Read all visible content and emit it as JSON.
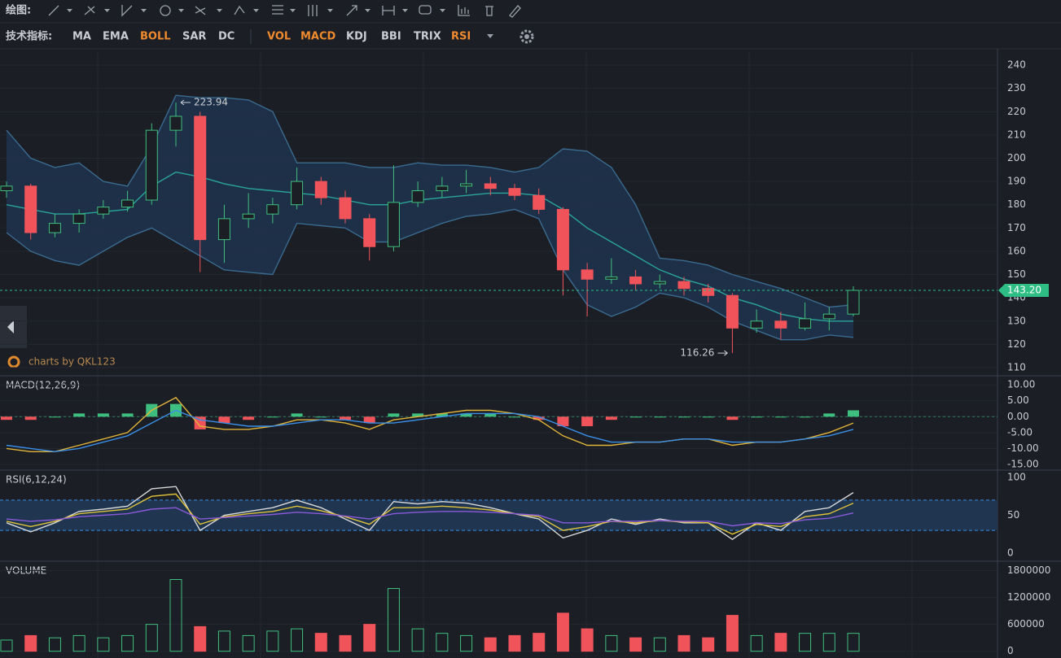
{
  "toolbar": {
    "draw_label": "绘图:",
    "indicator_label": "技术指标:",
    "indicators": [
      {
        "name": "MA",
        "active": false
      },
      {
        "name": "EMA",
        "active": false
      },
      {
        "name": "BOLL",
        "active": true
      },
      {
        "name": "SAR",
        "active": false
      },
      {
        "name": "DC",
        "active": false
      },
      {
        "name": "VOL",
        "active": true
      },
      {
        "name": "MACD",
        "active": true
      },
      {
        "name": "KDJ",
        "active": false
      },
      {
        "name": "BBI",
        "active": false
      },
      {
        "name": "TRIX",
        "active": false
      },
      {
        "name": "RSI",
        "active": true
      }
    ]
  },
  "watermark": "charts by QKL123",
  "chart_data": [
    {
      "type": "candlestick",
      "up_color": "#3fbf7f",
      "down_color": "#f0545a",
      "grid": true,
      "open": [
        186,
        188,
        168,
        172,
        176,
        179,
        182,
        212,
        218,
        165,
        174,
        176,
        180,
        190,
        183,
        174,
        162,
        181,
        186,
        188,
        189,
        187,
        184,
        178,
        152,
        148,
        149,
        146,
        147,
        144,
        141,
        127,
        130,
        127,
        131,
        133
      ],
      "high": [
        190,
        189,
        176,
        178,
        182,
        186,
        215,
        223.94,
        220,
        180,
        185,
        183,
        196,
        192,
        186,
        176,
        197,
        190,
        192,
        195,
        192,
        189,
        187,
        179,
        155,
        157,
        152,
        150,
        149,
        146,
        142,
        135,
        134,
        138,
        136,
        145
      ],
      "low": [
        183,
        165,
        166,
        168,
        174,
        177,
        180,
        205,
        151,
        155,
        170,
        172,
        178,
        180,
        172,
        156,
        160,
        179,
        183,
        185,
        184,
        182,
        176,
        141,
        132,
        146,
        143,
        144,
        141,
        138,
        116.26,
        125,
        122,
        126,
        126,
        132
      ],
      "close": [
        188,
        168,
        172,
        176,
        179,
        182,
        212,
        218,
        165,
        174,
        176,
        180,
        190,
        183,
        174,
        162,
        181,
        186,
        188,
        189,
        187,
        184,
        178,
        152,
        148,
        149,
        146,
        147,
        144,
        141,
        127,
        130,
        127,
        131,
        133,
        143.2
      ],
      "boll": {
        "fill": "#1f3550",
        "upper_color": "#3a6a8f",
        "mid_color": "#2aa39a",
        "upper": [
          212,
          200,
          196,
          198,
          190,
          188,
          205,
          227,
          226,
          226,
          225,
          220,
          198,
          198,
          198,
          196,
          196,
          198,
          197,
          197,
          196,
          194,
          196,
          204,
          203,
          196,
          180,
          157,
          156,
          154,
          150,
          147,
          144,
          140,
          136,
          137
        ],
        "mid": [
          180,
          178,
          176,
          176,
          177,
          178,
          188,
          194,
          192,
          189,
          187,
          186,
          185,
          184,
          182,
          180,
          180,
          182,
          183,
          184,
          185,
          185,
          184,
          178,
          170,
          164,
          158,
          152,
          148,
          145,
          140,
          137,
          133,
          131,
          130,
          130
        ],
        "lower": [
          168,
          160,
          156,
          154,
          160,
          166,
          170,
          164,
          158,
          152,
          151,
          150,
          172,
          171,
          170,
          164,
          164,
          168,
          172,
          175,
          176,
          178,
          174,
          152,
          137,
          132,
          136,
          142,
          140,
          136,
          130,
          126,
          122,
          122,
          124,
          123
        ]
      },
      "last_label": "143.20",
      "last_color": "#2ebd85",
      "ylim": [
        106.5,
        246.3
      ],
      "yticks": [
        110,
        120,
        130,
        140,
        150,
        160,
        170,
        180,
        190,
        200,
        210,
        220,
        230,
        240
      ]
    },
    {
      "type": "combo",
      "title": "MACD(12,26,9)",
      "grid": true,
      "series": [
        {
          "color": "#e0b43a",
          "values": [
            -10,
            -11,
            -11,
            -9,
            -7,
            -5,
            2,
            6,
            -3,
            -4,
            -4,
            -3,
            -1,
            -1,
            -2,
            -4,
            -1,
            0,
            1,
            2,
            2,
            1,
            -1,
            -6,
            -9,
            -9,
            -8,
            -8,
            -7,
            -7,
            -9,
            -8,
            -8,
            -7,
            -5,
            -2
          ]
        },
        {
          "color": "#3a8ee6",
          "values": [
            -9,
            -10,
            -11,
            -10,
            -8,
            -6,
            -2,
            2,
            -1,
            -2,
            -3,
            -3,
            -2,
            -1,
            -1,
            -2,
            -2,
            -1,
            0,
            1,
            1,
            1,
            0,
            -3,
            -6,
            -8,
            -8,
            -8,
            -7,
            -7,
            -8,
            -8,
            -8,
            -7,
            -6,
            -4
          ]
        }
      ],
      "bars": {
        "up_color": "#3fbf7f",
        "down_color": "#f0545a",
        "values": [
          -1,
          -1,
          0,
          1,
          1,
          1,
          4,
          4,
          -4,
          -2,
          -1,
          0,
          1,
          0,
          -1,
          -2,
          1,
          1,
          1,
          1,
          1,
          0,
          -1,
          -3,
          -3,
          -1,
          0,
          0,
          0,
          0,
          -1,
          0,
          0,
          0,
          1,
          2
        ]
      },
      "ylim": [
        -16.8,
        12.6
      ],
      "yticks": [
        {
          "value": 10,
          "label": "10.00"
        },
        {
          "value": 5,
          "label": "5.00"
        },
        {
          "value": 0,
          "label": "0.00"
        },
        {
          "value": -5,
          "label": "-5.00"
        },
        {
          "value": -10,
          "label": "-10.00"
        },
        {
          "value": -15,
          "label": "-15.00"
        }
      ]
    },
    {
      "type": "line",
      "title": "RSI(6,12,24)",
      "grid": false,
      "bands": [
        30,
        70
      ],
      "band_color": "#1f3550",
      "series": [
        {
          "color": "#d8d8d8",
          "values": [
            40,
            28,
            40,
            55,
            58,
            62,
            85,
            88,
            30,
            50,
            55,
            60,
            70,
            60,
            45,
            30,
            68,
            65,
            68,
            66,
            60,
            52,
            45,
            20,
            30,
            45,
            38,
            45,
            40,
            40,
            18,
            40,
            30,
            55,
            60,
            80
          ]
        },
        {
          "color": "#e0c23a",
          "values": [
            42,
            35,
            42,
            52,
            55,
            58,
            75,
            78,
            38,
            48,
            52,
            55,
            62,
            56,
            48,
            38,
            60,
            60,
            62,
            60,
            57,
            52,
            48,
            30,
            35,
            42,
            40,
            43,
            41,
            40,
            25,
            38,
            35,
            48,
            52,
            66
          ]
        },
        {
          "color": "#8a5ad8",
          "values": [
            45,
            42,
            44,
            48,
            50,
            52,
            58,
            60,
            45,
            47,
            49,
            51,
            54,
            52,
            49,
            45,
            52,
            54,
            55,
            55,
            54,
            52,
            50,
            40,
            40,
            42,
            42,
            43,
            42,
            42,
            36,
            40,
            39,
            44,
            46,
            53
          ]
        }
      ],
      "ylim": [
        -10.8,
        108.6
      ],
      "yticks": [
        0,
        50,
        100
      ]
    },
    {
      "type": "bar",
      "title": "VOLUME",
      "grid": true,
      "values": [
        250000,
        350000,
        300000,
        350000,
        300000,
        350000,
        600000,
        1600000,
        550000,
        450000,
        350000,
        450000,
        500000,
        400000,
        350000,
        600000,
        1400000,
        500000,
        400000,
        350000,
        300000,
        350000,
        400000,
        850000,
        500000,
        350000,
        300000,
        300000,
        350000,
        300000,
        800000,
        350000,
        400000,
        400000,
        400000,
        400000
      ],
      "ylim": [
        -96000,
        1990000
      ],
      "yticks": [
        0,
        600000,
        1200000,
        1800000
      ]
    }
  ]
}
